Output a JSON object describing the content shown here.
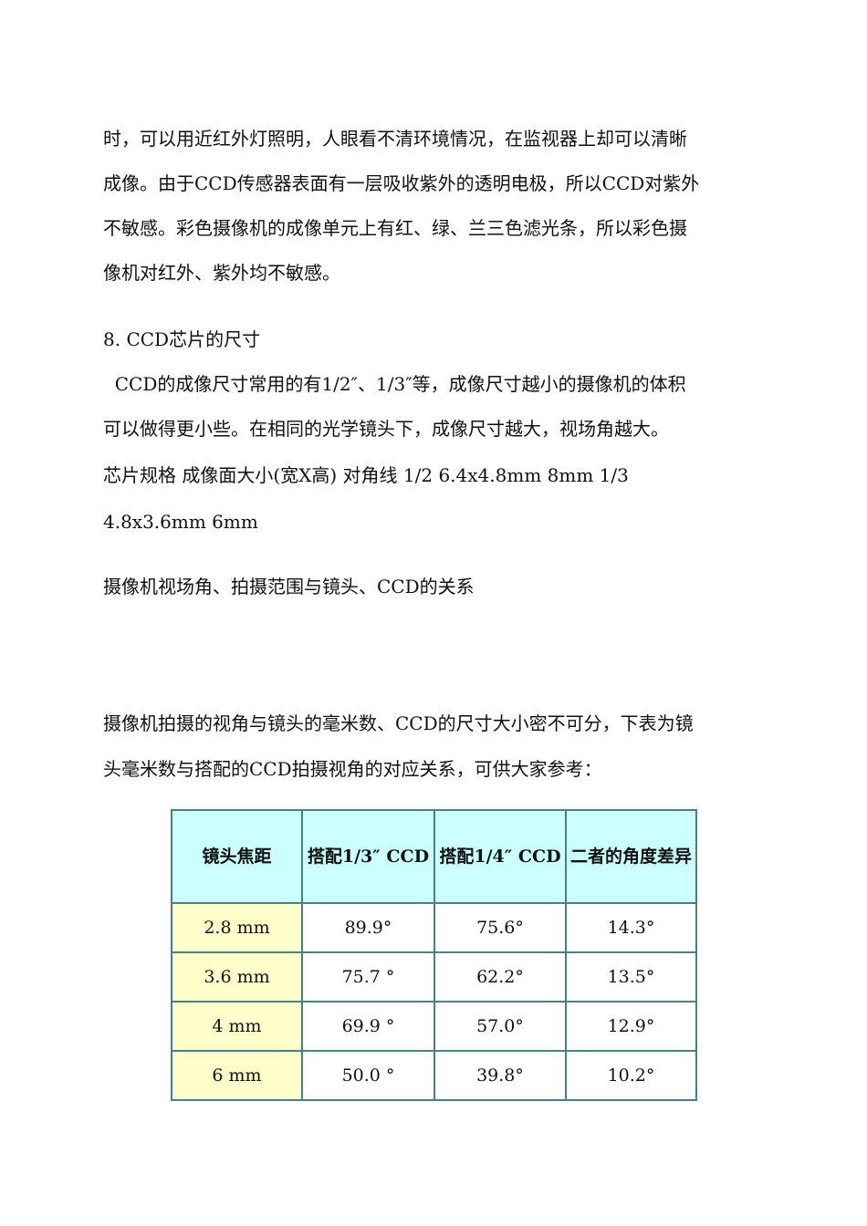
{
  "paragraphs": [
    "时，可以用近红外灯照明，人眼看不清环境情况，在监视器上却可以清晰",
    "成像。由于CCD传感器表面有一层吸收紫外的透明电极，所以CCD对紫外",
    "不敏感。彩色摄像机的成像单元上有红、绿、兰三色滤光条，所以彩色摄",
    "像机对红外、紫外均不敏感。",
    "8. CCD芯片的尺寸",
    "  CCD的成像尺寸常用的有1/2″、1/3″等，成像尺寸越小的摄像机的体积",
    "可以做得更小些。在相同的光学镜头下，成像尺寸越大，视场角越大。",
    "芯片规格 成像面大小(宽X高) 对角线 1/2 6.4x4.8mm 8mm 1/3",
    "4.8x3.6mm 6mm",
    "摄像机视场角、拍摄范围与镜头、CCD的关系",
    "摄像机拍摄的视角与镜头的毫米数、CCD的尺寸大小密不可分，下表为镜",
    "头毫米数与搭配的CCD拍摄视角的对应关系，可供大家参考："
  ],
  "table": {
    "headers": [
      "镜头焦距",
      "搭配1/3″ CCD",
      "搭配1/4″ CCD",
      "二者的角度差异"
    ],
    "rows": [
      [
        "2.8 mm",
        "89.9°",
        "75.6°",
        "14.3°"
      ],
      [
        "3.6 mm",
        "75.7 °",
        "62.2°",
        "13.5°"
      ],
      [
        "4 mm",
        "69.9 °",
        "57.0°",
        "12.9°"
      ],
      [
        "6 mm",
        "50.0 °",
        "39.8°",
        "10.2°"
      ]
    ],
    "colors": {
      "header_bg": "#ccffff",
      "first_col_bg": "#ffffcc",
      "border": "#3f7f86"
    }
  }
}
